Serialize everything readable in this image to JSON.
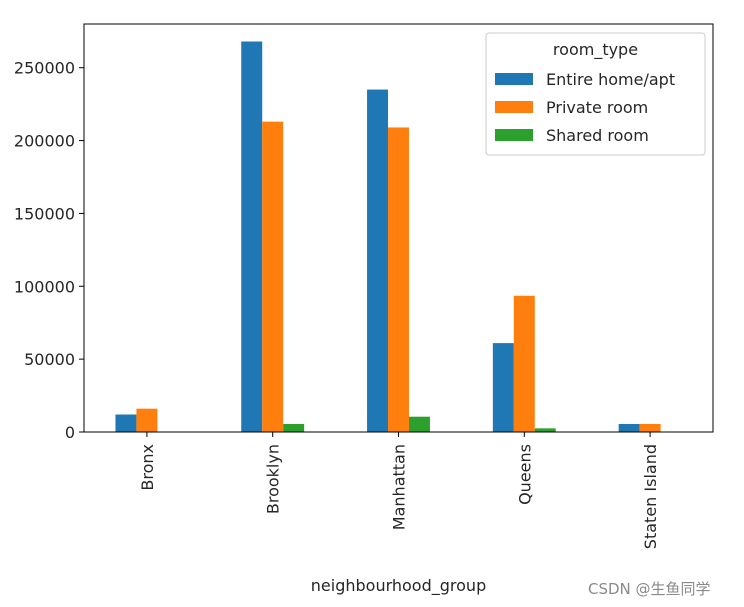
{
  "chart_data": {
    "type": "bar",
    "title": "",
    "xlabel": "neighbourhood_group",
    "ylabel": "",
    "categories": [
      "Bronx",
      "Brooklyn",
      "Manhattan",
      "Queens",
      "Staten Island"
    ],
    "series": [
      {
        "name": "Entire home/apt",
        "color": "#1f77b4",
        "values": [
          12000,
          268000,
          235000,
          61000,
          5500
        ]
      },
      {
        "name": "Private room",
        "color": "#ff7f0e",
        "values": [
          16000,
          213000,
          209000,
          93500,
          5500
        ]
      },
      {
        "name": "Shared room",
        "color": "#2ca02c",
        "values": [
          0,
          5500,
          10500,
          2500,
          0
        ]
      }
    ],
    "ylim": [
      0,
      280000
    ],
    "yticks": [
      0,
      50000,
      100000,
      150000,
      200000,
      250000
    ],
    "ytick_labels": [
      "0",
      "50000",
      "100000",
      "150000",
      "200000",
      "250000"
    ],
    "legend": {
      "title": "room_type",
      "position": "top-right"
    },
    "grid": false
  },
  "watermark": "CSDN @生鱼同学"
}
